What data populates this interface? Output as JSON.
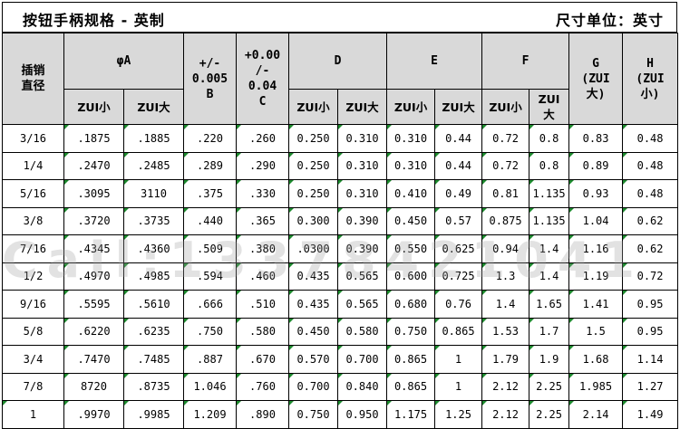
{
  "title": "按钮手柄规格 - 英制",
  "unit": "尺寸单位：英寸",
  "headers": {
    "pin_dia": "插销\n直径",
    "A": "φA",
    "B": "+/-\n0.005\nB",
    "C": "+0.00\n/-\n0.04\nC",
    "D": "D",
    "E": "E",
    "F": "F",
    "G": "G\n(ZUI\n大)",
    "H": "H\n(ZUI\n小)",
    "sub": {
      "A_min": "ZUI小",
      "A_max": "ZUI大",
      "D_min": "ZUI小",
      "D_max": "ZUI大",
      "E_min": "ZUI小",
      "E_max": "ZUI大",
      "F_min": "ZUI小",
      "F_max": "ZUI\n大"
    }
  },
  "rows": [
    [
      "3/16",
      ".1875",
      ".1885",
      ".220",
      ".260",
      "0.250",
      "0.310",
      "0.310",
      "0.44",
      "0.72",
      "0.8",
      "0.83",
      "0.48"
    ],
    [
      "1/4",
      ".2470",
      ".2485",
      ".289",
      ".290",
      "0.250",
      "0.310",
      "0.310",
      "0.44",
      "0.72",
      "0.8",
      "0.89",
      "0.48"
    ],
    [
      "5/16",
      ".3095",
      "3110",
      ".375",
      ".330",
      "0.250",
      "0.310",
      "0.410",
      "0.49",
      "0.81",
      "1.135",
      "0.93",
      "0.48"
    ],
    [
      "3/8",
      ".3720",
      ".3735",
      ".440",
      ".365",
      "0.300",
      "0.390",
      "0.450",
      "0.57",
      "0.875",
      "1.135",
      "1.04",
      "0.62"
    ],
    [
      "7/16",
      ".4345",
      ".4360",
      ".509",
      ".380",
      ".0300",
      "0.390",
      "0.550",
      "0.625",
      "0.94",
      "1.4",
      "1.16",
      "0.62"
    ],
    [
      "1/2",
      ".4970",
      ".4985",
      ".594",
      ".460",
      "0.435",
      "0.565",
      "0.600",
      "0.725",
      "1.3",
      "1.4",
      "1.19",
      "0.72"
    ],
    [
      "9/16",
      ".5595",
      ".5610",
      ".666",
      ".510",
      "0.435",
      "0.565",
      "0.680",
      "0.76",
      "1.4",
      "1.65",
      "1.41",
      "0.95"
    ],
    [
      "5/8",
      ".6220",
      ".6235",
      ".750",
      ".580",
      "0.450",
      "0.580",
      "0.750",
      "0.865",
      "1.53",
      "1.7",
      "1.5",
      "0.95"
    ],
    [
      "3/4",
      ".7470",
      ".7485",
      ".887",
      ".670",
      "0.570",
      "0.700",
      "0.865",
      "1",
      "1.79",
      "1.9",
      "1.68",
      "1.14"
    ],
    [
      "7/8",
      "8720",
      ".8735",
      "1.046",
      ".760",
      "0.700",
      "0.840",
      "0.865",
      "1",
      "2.12",
      "2.25",
      "1.985",
      "1.27"
    ],
    [
      "1",
      ".9970",
      ".9985",
      "1.209",
      ".890",
      "0.750",
      "0.950",
      "1.175",
      "1.25",
      "2.12",
      "2.25",
      "2.14",
      "1.49"
    ]
  ],
  "watermark": "Call:13378421041"
}
